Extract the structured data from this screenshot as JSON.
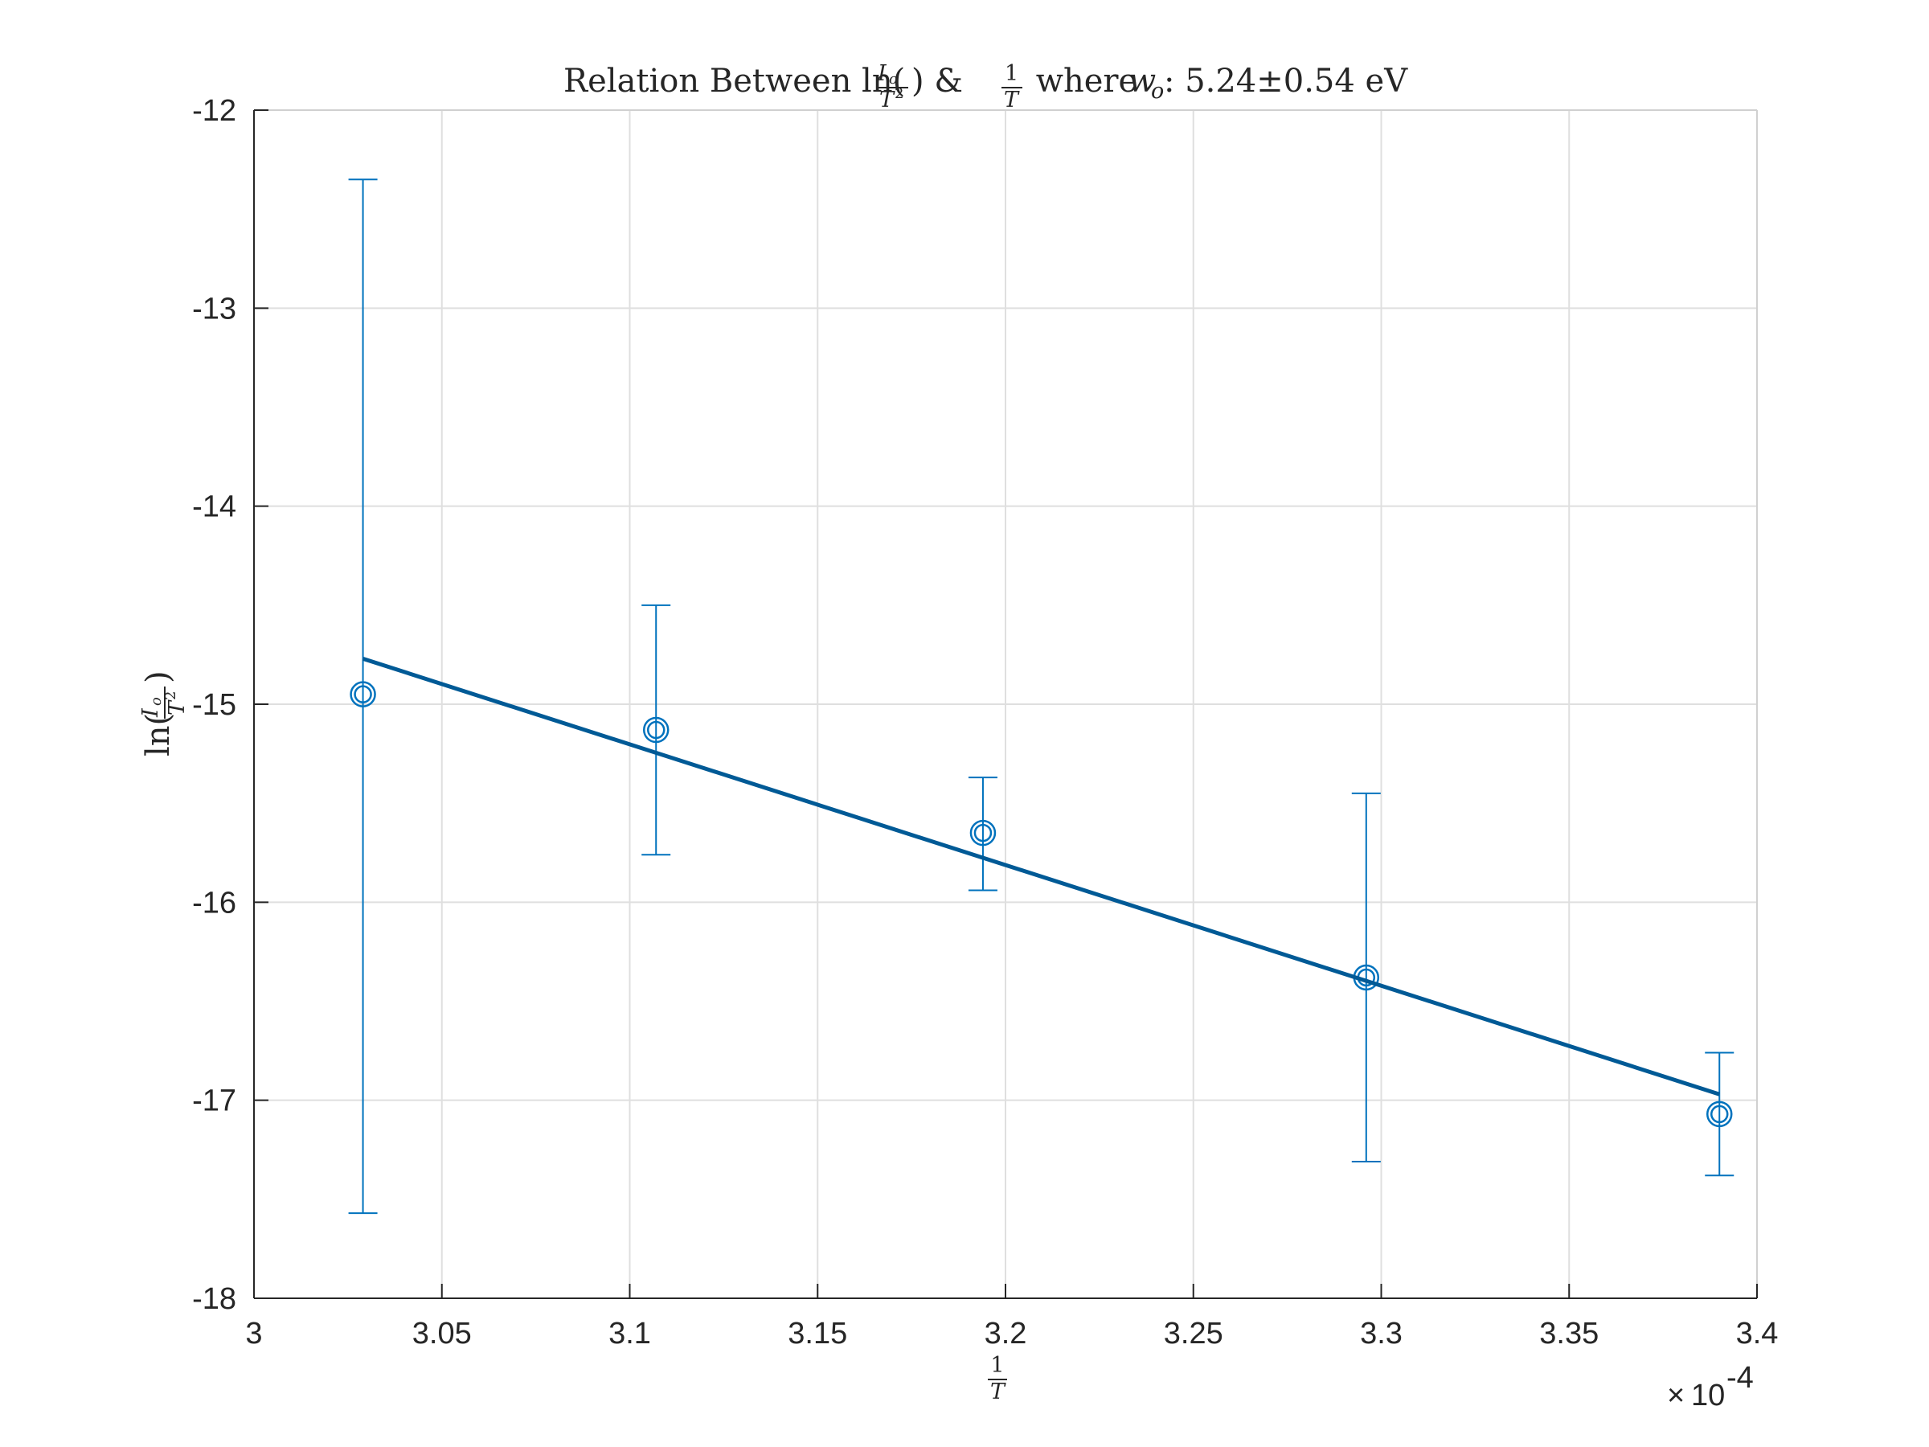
{
  "chart_data": {
    "type": "scatter",
    "title_parts": {
      "prefix": "Relation Between ln(",
      "y_num": "I",
      "y_num_sub": "o",
      "y_den": "T",
      "y_den_sup": "2",
      "mid": ") & ",
      "x_num": "1",
      "x_den": "T",
      "where": " where ",
      "w": "w",
      "w_sub": "o",
      "value": ": 5.24±0.54 eV"
    },
    "xlabel": {
      "num": "1",
      "den": "T"
    },
    "ylabel": {
      "prefix": "ln(",
      "num": "I",
      "num_sub": "o",
      "den": "T",
      "den_sup": "2",
      "suffix": ")"
    },
    "xlim": [
      3.0,
      3.4
    ],
    "ylim": [
      -18,
      -12
    ],
    "x_multiplier": {
      "times": "×",
      "base": "10",
      "exponent": "-4"
    },
    "xticks": [
      3.0,
      3.05,
      3.1,
      3.15,
      3.2,
      3.25,
      3.3,
      3.35,
      3.4
    ],
    "xtick_labels": [
      "3",
      "3.05",
      "3.1",
      "3.15",
      "3.2",
      "3.25",
      "3.3",
      "3.35",
      "3.4"
    ],
    "yticks": [
      -18,
      -17,
      -16,
      -15,
      -14,
      -13,
      -12
    ],
    "ytick_labels": [
      "-18",
      "-17",
      "-16",
      "-15",
      "-14",
      "-13",
      "-12"
    ],
    "grid": true,
    "series": [
      {
        "type": "errorbar",
        "marker": "double-circle",
        "color": "#0072BD",
        "x": [
          3.029,
          3.107,
          3.194,
          3.296,
          3.39
        ],
        "y": [
          -14.95,
          -15.13,
          -15.65,
          -16.38,
          -17.07
        ],
        "lower": [
          -17.57,
          -15.76,
          -15.94,
          -17.31,
          -17.38
        ],
        "upper": [
          -12.35,
          -14.5,
          -15.37,
          -15.45,
          -16.76
        ]
      },
      {
        "type": "line",
        "color": "#005A96",
        "x": [
          3.029,
          3.39
        ],
        "y": [
          -14.77,
          -16.97
        ]
      }
    ]
  }
}
